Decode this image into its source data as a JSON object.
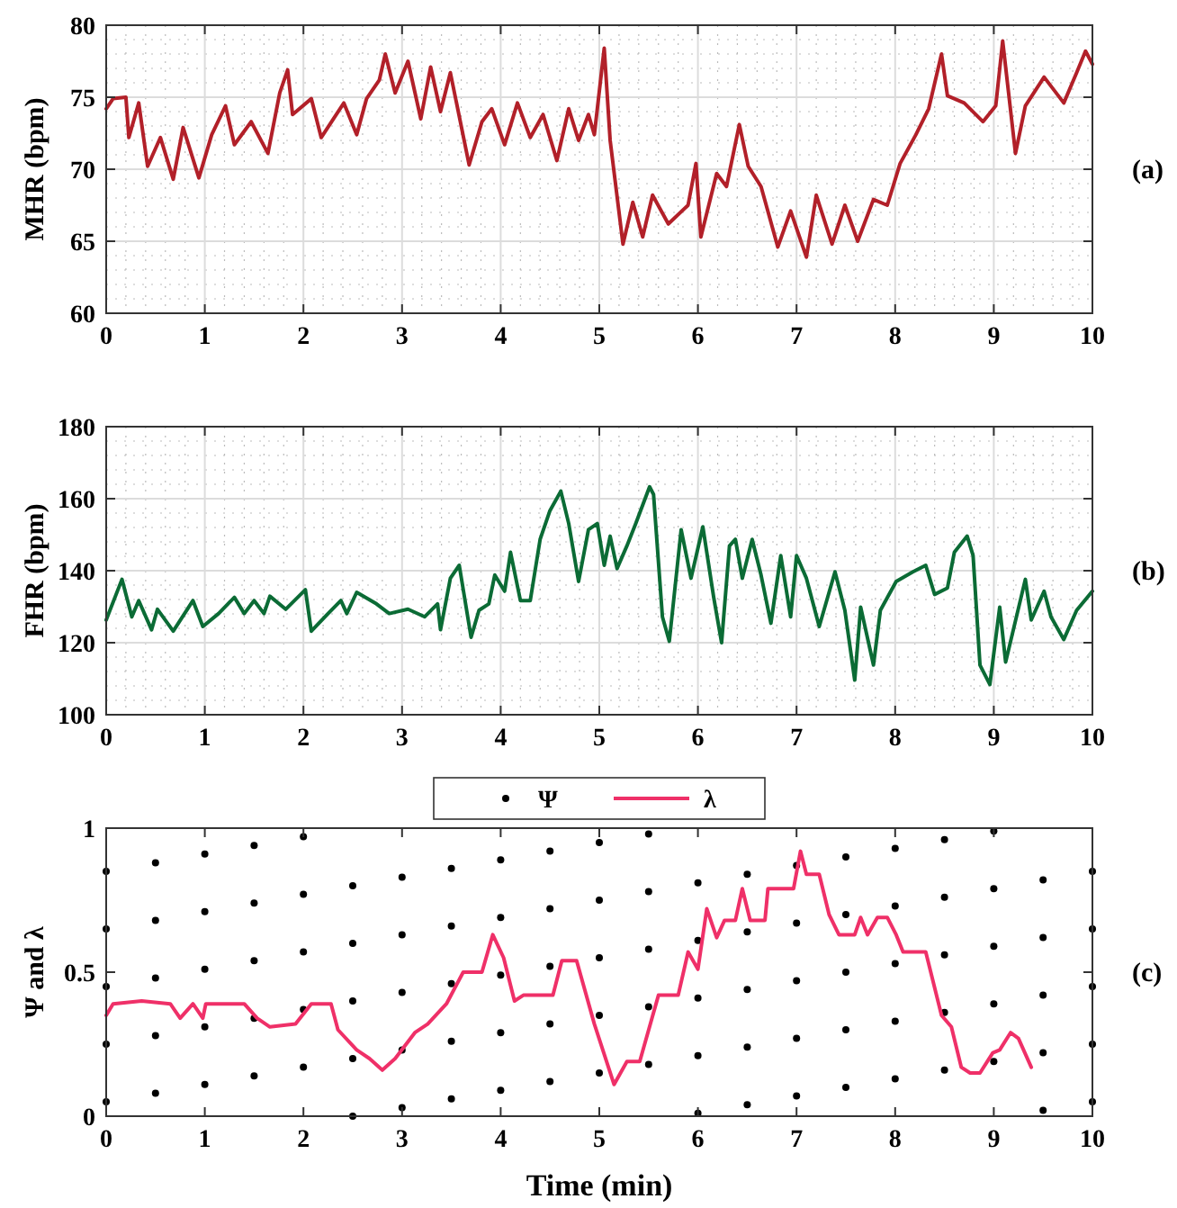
{
  "chart_data": [
    {
      "type": "line",
      "ylabel": "MHR (bpm)",
      "annotations": [
        "(a)"
      ],
      "xlim": [
        0,
        10
      ],
      "xticks": [
        0,
        1,
        2,
        3,
        4,
        5,
        6,
        7,
        8,
        9,
        10
      ],
      "ylim": [
        60,
        80
      ],
      "yticks": [
        60,
        65,
        70,
        75,
        80
      ],
      "grid": true,
      "series": [
        {
          "color": "#b22029",
          "x": [
            0,
            0.07,
            0.2,
            0.23,
            0.33,
            0.42,
            0.55,
            0.68,
            0.78,
            0.94,
            1.07,
            1.21,
            1.3,
            1.47,
            1.64,
            1.76,
            1.84,
            1.89,
            2.08,
            2.18,
            2.41,
            2.54,
            2.64,
            2.77,
            2.83,
            2.93,
            3.06,
            3.19,
            3.29,
            3.39,
            3.49,
            3.68,
            3.81,
            3.91,
            4.04,
            4.17,
            4.3,
            4.43,
            4.57,
            4.69,
            4.79,
            4.89,
            4.95,
            5.05,
            5.11,
            5.24,
            5.34,
            5.44,
            5.54,
            5.7,
            5.9,
            5.98,
            6.03,
            6.19,
            6.29,
            6.42,
            6.51,
            6.64,
            6.81,
            6.94,
            7.1,
            7.2,
            7.36,
            7.49,
            7.62,
            7.78,
            7.92,
            8.05,
            8.21,
            8.34,
            8.47,
            8.53,
            8.7,
            8.89,
            9.02,
            9.09,
            9.22,
            9.32,
            9.51,
            9.71,
            9.84,
            9.93,
            10
          ],
          "values": [
            74.2,
            74.9,
            75,
            72.2,
            74.6,
            70.2,
            72.2,
            69.3,
            72.9,
            69.4,
            72.4,
            74.4,
            71.7,
            73.3,
            71.1,
            75.3,
            76.9,
            73.8,
            74.9,
            72.2,
            74.6,
            72.4,
            74.9,
            76.2,
            78,
            75.3,
            77.5,
            73.5,
            77.1,
            74,
            76.7,
            70.3,
            73.3,
            74.2,
            71.7,
            74.6,
            72.2,
            73.8,
            70.6,
            74.2,
            72,
            73.8,
            72.4,
            78.4,
            72,
            64.8,
            67.7,
            65.3,
            68.2,
            66.2,
            67.5,
            70.4,
            65.3,
            69.7,
            68.8,
            73.1,
            70.2,
            68.8,
            64.6,
            67.1,
            63.9,
            68.2,
            64.8,
            67.5,
            65,
            67.9,
            67.5,
            70.4,
            72.4,
            74.2,
            78,
            75.1,
            74.6,
            73.3,
            74.4,
            78.9,
            71.1,
            74.4,
            76.4,
            74.6,
            76.7,
            78.2,
            77.3
          ]
        }
      ]
    },
    {
      "type": "line",
      "ylabel": "FHR (bpm)",
      "annotations": [
        "(b)"
      ],
      "xlim": [
        0,
        10
      ],
      "xticks": [
        0,
        1,
        2,
        3,
        4,
        5,
        6,
        7,
        8,
        9,
        10
      ],
      "ylim": [
        100,
        180
      ],
      "yticks": [
        100,
        120,
        140,
        160,
        180
      ],
      "grid": true,
      "series": [
        {
          "color": "#0b6b35",
          "x": [
            0,
            0.16,
            0.26,
            0.33,
            0.46,
            0.52,
            0.68,
            0.88,
            0.98,
            1.14,
            1.3,
            1.4,
            1.5,
            1.6,
            1.66,
            1.82,
            2.02,
            2.08,
            2.25,
            2.38,
            2.44,
            2.54,
            2.74,
            2.87,
            3.06,
            3.23,
            3.36,
            3.39,
            3.49,
            3.58,
            3.7,
            3.78,
            3.88,
            3.94,
            4.04,
            4.1,
            4.2,
            4.3,
            4.4,
            4.5,
            4.61,
            4.69,
            4.79,
            4.89,
            4.98,
            5.05,
            5.11,
            5.18,
            5.28,
            5.37,
            5.51,
            5.55,
            5.64,
            5.71,
            5.83,
            5.93,
            6.05,
            6.16,
            6.24,
            6.32,
            6.38,
            6.45,
            6.55,
            6.64,
            6.74,
            6.84,
            6.94,
            7.0,
            7.1,
            7.23,
            7.39,
            7.49,
            7.59,
            7.65,
            7.78,
            7.85,
            8.01,
            8.18,
            8.31,
            8.4,
            8.53,
            8.6,
            8.73,
            8.79,
            8.86,
            8.96,
            9.06,
            9.12,
            9.32,
            9.38,
            9.51,
            9.58,
            9.71,
            9.84,
            10
          ],
          "values": [
            126.3,
            137.6,
            127.2,
            131.7,
            123.6,
            129.3,
            123.2,
            131.7,
            124.5,
            128.1,
            132.6,
            128.1,
            131.7,
            128.1,
            132.9,
            129.3,
            134.7,
            123.2,
            128.1,
            131.7,
            128.1,
            134,
            130.8,
            128.1,
            129.3,
            127.2,
            130.8,
            123.6,
            137.9,
            141.5,
            121.5,
            129,
            130.8,
            138.8,
            134.3,
            145.1,
            131.7,
            131.7,
            148.7,
            156.7,
            162.1,
            153.1,
            137,
            151.4,
            153.1,
            141.5,
            149.6,
            140.6,
            146.9,
            153.1,
            163.3,
            161.2,
            127.2,
            120.4,
            151.4,
            137.9,
            152.2,
            132.6,
            120,
            146.9,
            148.7,
            137.9,
            148.7,
            138.8,
            125.4,
            144.2,
            127.2,
            144.2,
            137.9,
            124.5,
            139.7,
            129,
            109.6,
            129.9,
            113.8,
            129,
            137,
            139.7,
            141.5,
            133.4,
            135.2,
            145.1,
            149.6,
            144.2,
            113.8,
            108.4,
            129.9,
            114.6,
            137.6,
            126.3,
            134.3,
            127.2,
            120.9,
            129,
            134.3
          ]
        }
      ]
    },
    {
      "type": "line",
      "xlabel": "Time (min)",
      "ylabel": "Ψ and λ",
      "annotations": [
        "(c)"
      ],
      "xlim": [
        0,
        10
      ],
      "xticks": [
        0,
        1,
        2,
        3,
        4,
        5,
        6,
        7,
        8,
        9,
        10
      ],
      "ylim": [
        0,
        1
      ],
      "yticks": [
        0,
        0.5,
        1
      ],
      "legend": "top",
      "series": [
        {
          "name": "Ψ",
          "type": "scatter",
          "marker": "circle",
          "color": "#000000",
          "x": [
            0,
            0,
            0,
            0,
            0,
            0.5,
            0.5,
            0.5,
            0.5,
            0.5,
            1,
            1,
            1,
            1,
            1,
            1.5,
            1.5,
            1.5,
            1.5,
            1.5,
            2,
            2,
            2,
            2,
            2,
            2.5,
            2.5,
            2.5,
            2.5,
            2.5,
            3,
            3,
            3,
            3,
            3,
            3.5,
            3.5,
            3.5,
            3.5,
            3.5,
            4,
            4,
            4,
            4,
            4,
            4.5,
            4.5,
            4.5,
            4.5,
            4.5,
            5,
            5,
            5,
            5,
            5,
            5.5,
            5.5,
            5.5,
            5.5,
            5.5,
            6,
            6,
            6,
            6,
            6,
            6.5,
            6.5,
            6.5,
            6.5,
            6.5,
            7,
            7,
            7,
            7,
            7,
            7.5,
            7.5,
            7.5,
            7.5,
            7.5,
            8,
            8,
            8,
            8,
            8,
            8.5,
            8.5,
            8.5,
            8.5,
            8.5,
            9,
            9,
            9,
            9,
            9,
            9.5,
            9.5,
            9.5,
            9.5,
            9.5,
            10,
            10,
            10,
            10,
            10
          ],
          "values": [
            0.05,
            0.25,
            0.45,
            0.65,
            0.85,
            0.08,
            0.28,
            0.48,
            0.68,
            0.88,
            0.11,
            0.31,
            0.51,
            0.71,
            0.91,
            0.14,
            0.34,
            0.54,
            0.74,
            0.94,
            0.17,
            0.37,
            0.57,
            0.77,
            0.97,
            0.2,
            0.4,
            0.6,
            0.8,
            0,
            0.23,
            0.43,
            0.63,
            0.83,
            0.03,
            0.26,
            0.46,
            0.66,
            0.86,
            0.06,
            0.29,
            0.49,
            0.69,
            0.89,
            0.09,
            0.32,
            0.52,
            0.72,
            0.92,
            0.12,
            0.35,
            0.55,
            0.75,
            0.95,
            0.15,
            0.38,
            0.58,
            0.78,
            0.98,
            0.18,
            0.41,
            0.61,
            0.81,
            0.01,
            0.21,
            0.44,
            0.64,
            0.84,
            0.04,
            0.24,
            0.47,
            0.67,
            0.87,
            0.07,
            0.27,
            0.5,
            0.7,
            0.9,
            0.1,
            0.3,
            0.53,
            0.73,
            0.93,
            0.13,
            0.33,
            0.56,
            0.76,
            0.96,
            0.16,
            0.36,
            0.59,
            0.79,
            0.99,
            0.19,
            0.39,
            0.62,
            0.82,
            0.02,
            0.22,
            0.42,
            0.65,
            0.85,
            0.05,
            0.25,
            0.45
          ]
        },
        {
          "name": "λ",
          "type": "line",
          "color": "#ef3068",
          "x": [
            0,
            0.07,
            0.36,
            0.65,
            0.75,
            0.88,
            0.98,
            1.01,
            1.4,
            1.53,
            1.66,
            1.92,
            2.08,
            2.28,
            2.35,
            2.54,
            2.67,
            2.8,
            2.93,
            3.13,
            3.26,
            3.45,
            3.62,
            3.81,
            3.92,
            4.03,
            4.14,
            4.23,
            4.53,
            4.62,
            4.77,
            4.95,
            5.15,
            5.28,
            5.41,
            5.6,
            5.8,
            5.9,
            6.0,
            6.09,
            6.19,
            6.27,
            6.38,
            6.45,
            6.53,
            6.68,
            6.71,
            6.97,
            7.04,
            7.1,
            7.23,
            7.33,
            7.43,
            7.59,
            7.65,
            7.72,
            7.82,
            7.92,
            8.01,
            8.08,
            8.31,
            8.47,
            8.57,
            8.67,
            8.76,
            8.86,
            8.99,
            9.06,
            9.17,
            9.25,
            9.38
          ],
          "values": [
            0.35,
            0.39,
            0.4,
            0.39,
            0.34,
            0.39,
            0.34,
            0.39,
            0.39,
            0.34,
            0.31,
            0.32,
            0.39,
            0.39,
            0.3,
            0.23,
            0.2,
            0.16,
            0.2,
            0.29,
            0.32,
            0.39,
            0.5,
            0.5,
            0.63,
            0.55,
            0.4,
            0.42,
            0.42,
            0.54,
            0.54,
            0.32,
            0.11,
            0.19,
            0.19,
            0.42,
            0.42,
            0.57,
            0.51,
            0.72,
            0.62,
            0.68,
            0.68,
            0.79,
            0.68,
            0.68,
            0.79,
            0.79,
            0.92,
            0.84,
            0.84,
            0.7,
            0.63,
            0.63,
            0.69,
            0.63,
            0.69,
            0.69,
            0.63,
            0.57,
            0.57,
            0.35,
            0.31,
            0.17,
            0.15,
            0.15,
            0.22,
            0.23,
            0.29,
            0.27,
            0.17
          ]
        }
      ]
    }
  ]
}
